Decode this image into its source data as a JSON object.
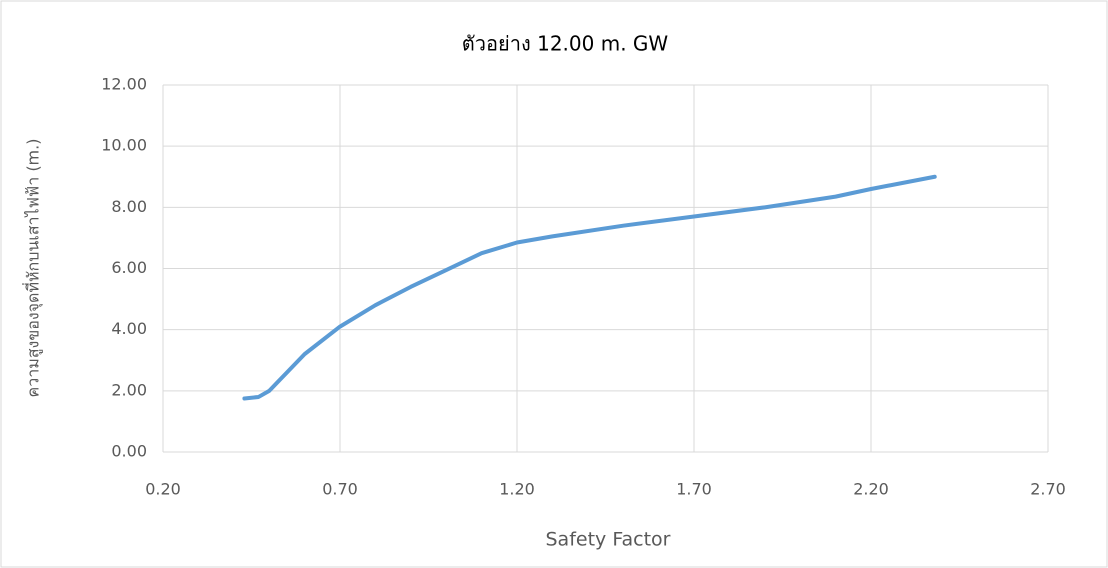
{
  "chart_data": {
    "type": "line",
    "title": "ตัวอย่าง 12.00 m. GW",
    "x_label": "Safety Factor",
    "y_label": "ความสูงของจุดที่หักบนเสาไฟฟ้า (m.)",
    "x": [
      0.43,
      0.47,
      0.5,
      0.55,
      0.6,
      0.7,
      0.8,
      0.9,
      1.0,
      1.1,
      1.2,
      1.3,
      1.5,
      1.7,
      1.9,
      2.1,
      2.2,
      2.38
    ],
    "values": [
      1.75,
      1.8,
      2.0,
      2.6,
      3.2,
      4.1,
      4.8,
      5.4,
      5.95,
      6.5,
      6.85,
      7.05,
      7.4,
      7.7,
      8.0,
      8.35,
      8.6,
      9.0
    ],
    "color": "#5b9bd5",
    "xlim": [
      0.2,
      2.7
    ],
    "xticks": [
      {
        "value": 0.2,
        "label": "0.20"
      },
      {
        "value": 0.7,
        "label": "0.70"
      },
      {
        "value": 1.2,
        "label": "1.20"
      },
      {
        "value": 1.7,
        "label": "1.70"
      },
      {
        "value": 2.2,
        "label": "2.20"
      },
      {
        "value": 2.7,
        "label": "2.70"
      }
    ],
    "ylim": [
      0,
      12
    ],
    "yticks": [
      {
        "value": 0,
        "label": "0.00"
      },
      {
        "value": 2,
        "label": "2.00"
      },
      {
        "value": 4,
        "label": "4.00"
      },
      {
        "value": 6,
        "label": "6.00"
      },
      {
        "value": 8,
        "label": "8.00"
      },
      {
        "value": 10,
        "label": "10.00"
      },
      {
        "value": 12,
        "label": "12.00"
      }
    ],
    "grid": true
  }
}
